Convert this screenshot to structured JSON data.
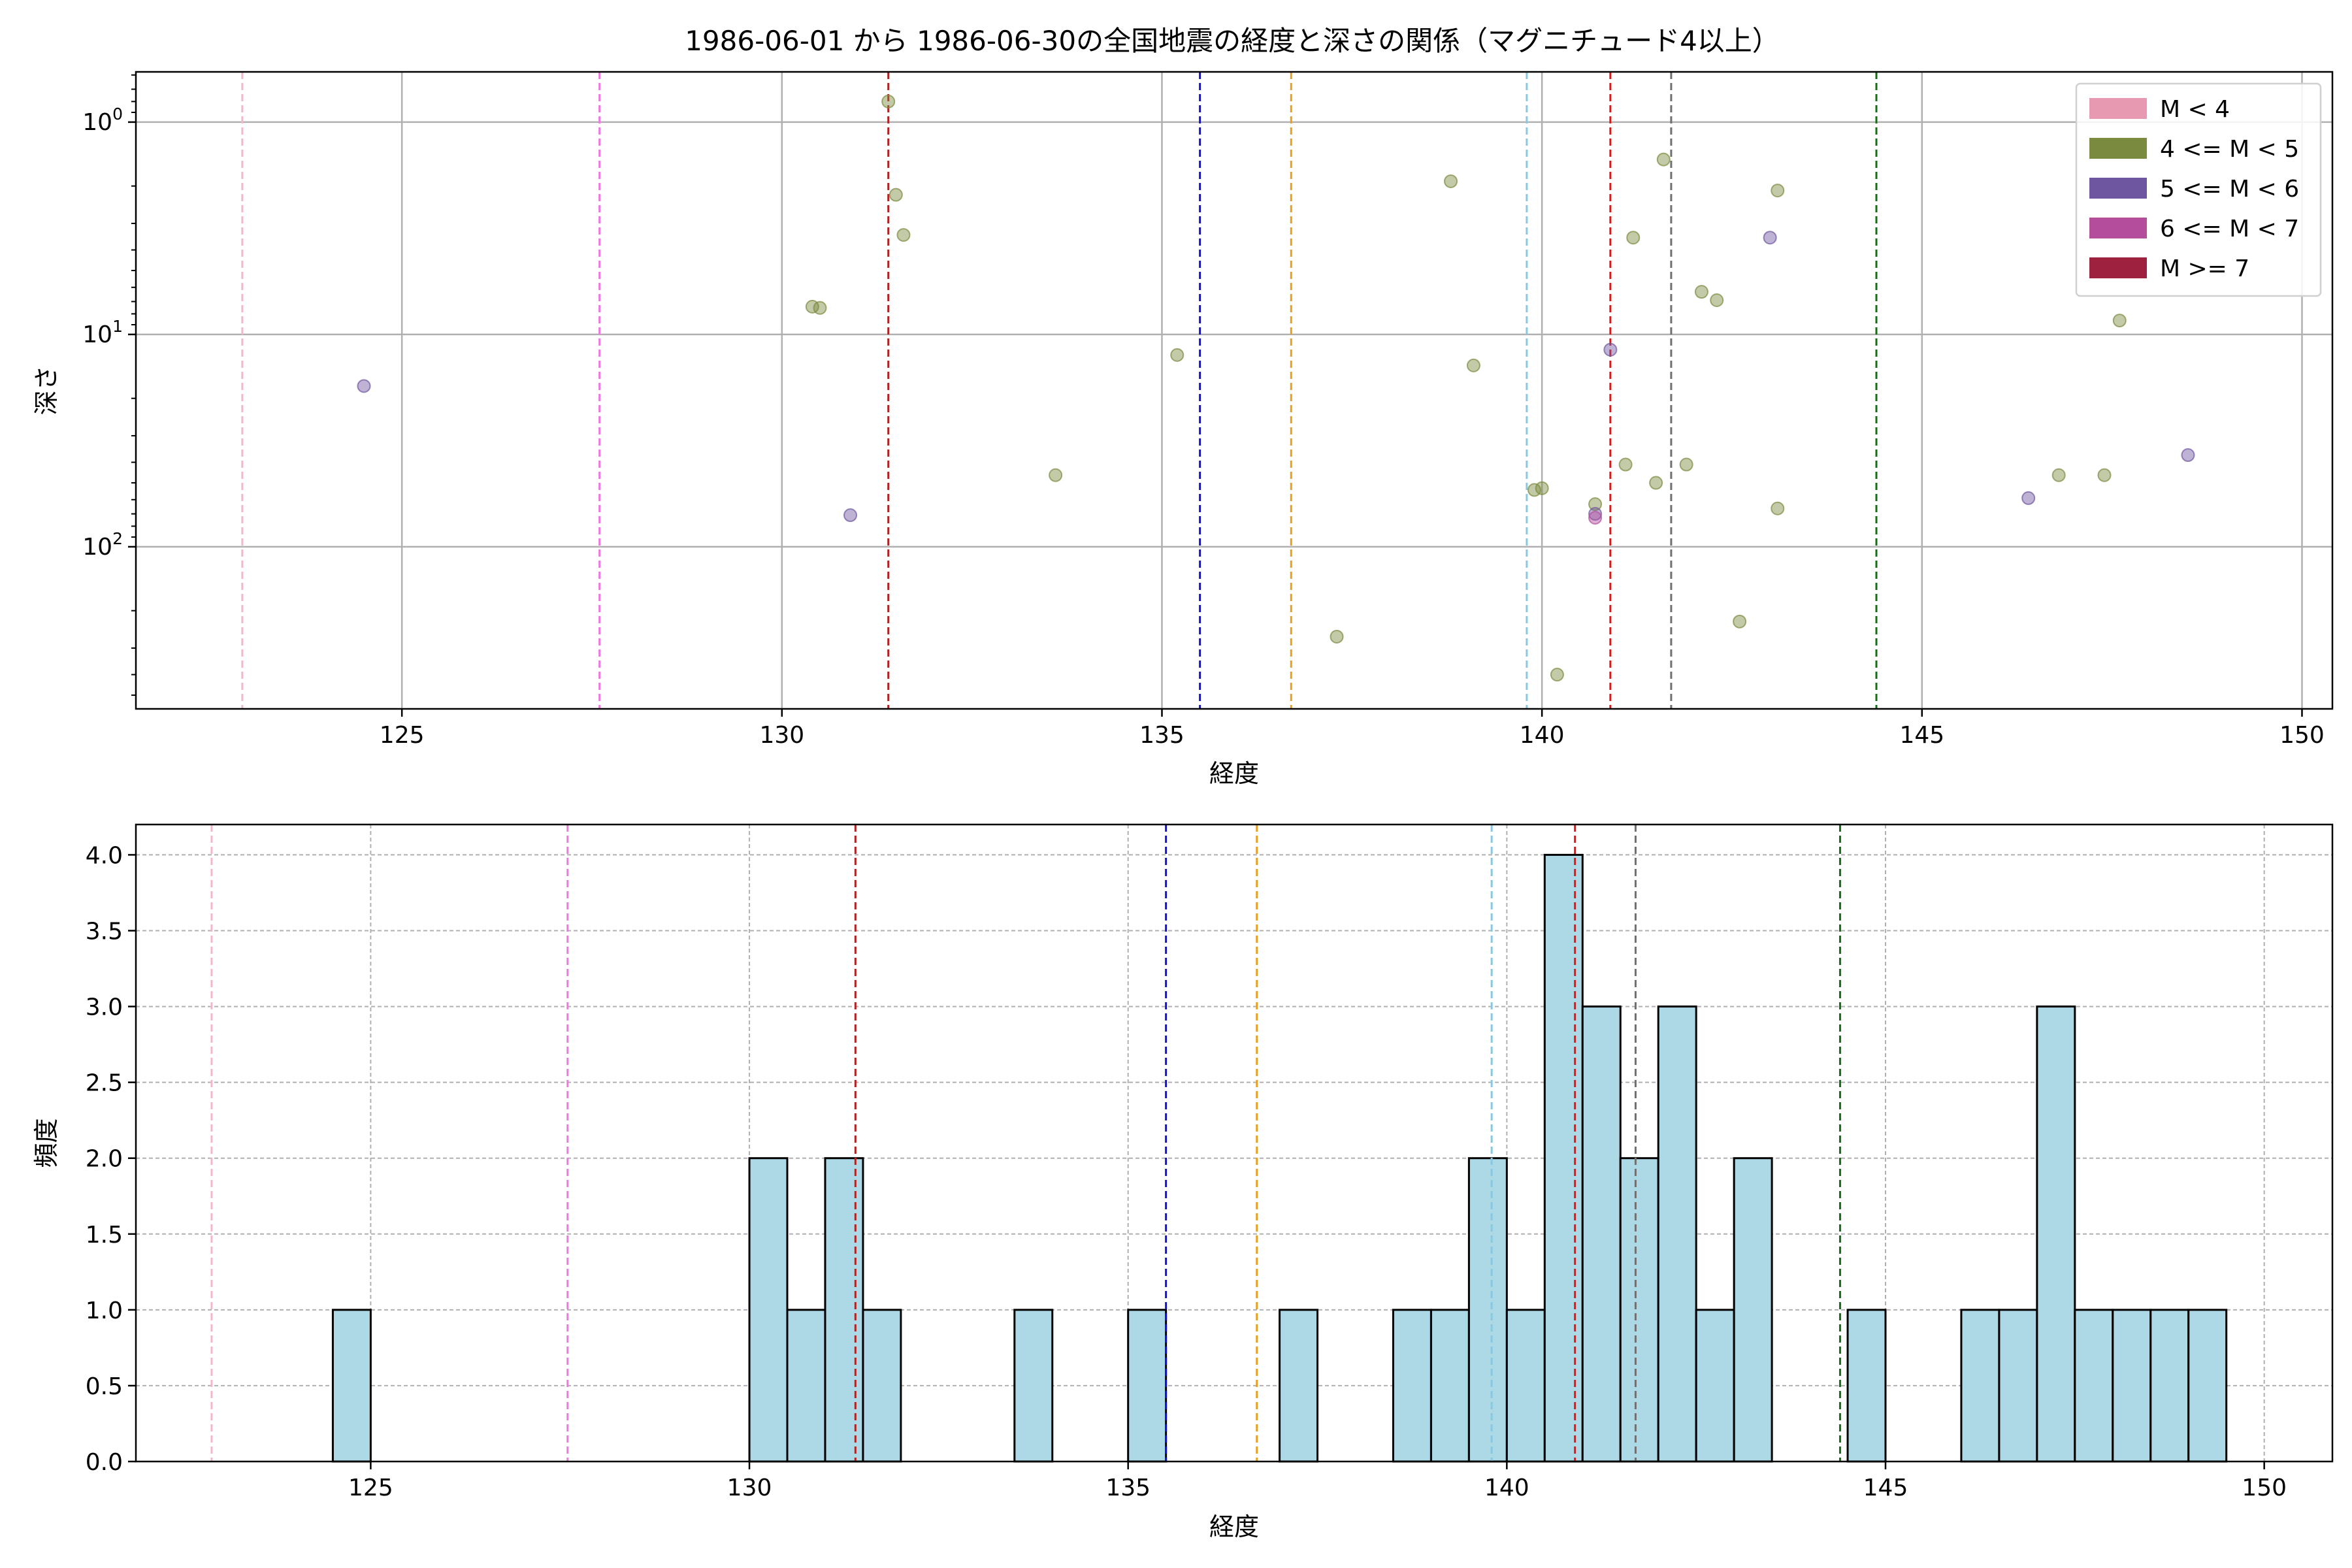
{
  "title": "1986-06-01 から 1986-06-30の全国地震の経度と深さの関係（マグニチュード4以上）",
  "chart_data": [
    {
      "type": "scatter",
      "xlabel": "経度",
      "ylabel": "深さ",
      "xlim": [
        121.5,
        150.4
      ],
      "ylim": [
        580,
        0.58
      ],
      "yscale": "log",
      "y_inverted": true,
      "grid": true,
      "x_ticks": [
        125,
        130,
        135,
        140,
        145,
        150
      ],
      "x_tick_labels": [
        "125",
        "130",
        "135",
        "140",
        "145",
        "150"
      ],
      "y_ticks": [
        1,
        10,
        100
      ],
      "y_tick_base": "10",
      "y_tick_exponents": [
        "0",
        "1",
        "2"
      ],
      "legend": {
        "placement": "top-right",
        "entries": [
          {
            "label": "M < 4",
            "color": "#e899b2"
          },
          {
            "label": "4 <= M < 5",
            "color": "#7a8a3e"
          },
          {
            "label": "5 <= M < 6",
            "color": "#6f56a0"
          },
          {
            "label": "6 <= M < 7",
            "color": "#b44d9b"
          },
          {
            "label": "M >= 7",
            "color": "#9e2240"
          }
        ]
      },
      "series": [
        {
          "name": "4 <= M < 5",
          "color": "#7a8a3e",
          "points": [
            [
              131.4,
              0.8
            ],
            [
              131.5,
              2.2
            ],
            [
              131.6,
              3.4
            ],
            [
              130.4,
              7.4
            ],
            [
              130.5,
              7.5
            ],
            [
              133.6,
              46
            ],
            [
              135.2,
              12.5
            ],
            [
              137.3,
              265
            ],
            [
              138.8,
              1.9
            ],
            [
              139.1,
              14
            ],
            [
              139.9,
              54
            ],
            [
              140.0,
              53
            ],
            [
              140.2,
              400
            ],
            [
              140.7,
              63
            ],
            [
              141.1,
              41
            ],
            [
              141.2,
              3.5
            ],
            [
              141.5,
              50
            ],
            [
              141.6,
              1.5
            ],
            [
              141.9,
              41
            ],
            [
              142.1,
              6.3
            ],
            [
              142.3,
              6.9
            ],
            [
              142.6,
              225
            ],
            [
              143.1,
              2.1
            ],
            [
              143.1,
              66
            ],
            [
              146.8,
              46
            ],
            [
              147.4,
              46
            ],
            [
              147.6,
              8.6
            ]
          ]
        },
        {
          "name": "5 <= M < 6",
          "color": "#6f56a0",
          "points": [
            [
              124.5,
              17.5
            ],
            [
              130.9,
              71
            ],
            [
              140.7,
              70
            ],
            [
              140.9,
              11.8
            ],
            [
              143.0,
              3.5
            ],
            [
              146.4,
              59
            ],
            [
              148.5,
              37
            ]
          ]
        },
        {
          "name": "6 <= M < 7",
          "color": "#b44d9b",
          "points": [
            [
              140.7,
              73
            ]
          ]
        }
      ],
      "reference_lines": [
        {
          "x": 122.9,
          "color": "#f4b6cc"
        },
        {
          "x": 127.6,
          "color": "#ee77e0"
        },
        {
          "x": 131.4,
          "color": "#b22222"
        },
        {
          "x": 135.5,
          "color": "#1010d8"
        },
        {
          "x": 136.7,
          "color": "#e8a020"
        },
        {
          "x": 139.8,
          "color": "#88c8e0"
        },
        {
          "x": 140.9,
          "color": "#ee1010"
        },
        {
          "x": 141.7,
          "color": "#707070"
        },
        {
          "x": 144.4,
          "color": "#157015"
        }
      ]
    },
    {
      "type": "bar",
      "subtype": "histogram",
      "xlabel": "経度",
      "ylabel": "頻度",
      "xlim": [
        121.9,
        150.9
      ],
      "ylim": [
        0,
        4.2
      ],
      "grid": true,
      "bar_color": "#add8e6",
      "bin_width": 0.5,
      "x_ticks": [
        125,
        130,
        135,
        140,
        145,
        150
      ],
      "x_tick_labels": [
        "125",
        "130",
        "135",
        "140",
        "145",
        "150"
      ],
      "y_ticks": [
        0,
        0.5,
        1.0,
        1.5,
        2.0,
        2.5,
        3.0,
        3.5,
        4.0
      ],
      "y_tick_labels": [
        "0.0",
        "0.5",
        "1.0",
        "1.5",
        "2.0",
        "2.5",
        "3.0",
        "3.5",
        "4.0"
      ],
      "bins": [
        [
          124.5,
          1
        ],
        [
          130.0,
          2
        ],
        [
          130.5,
          1
        ],
        [
          131.0,
          2
        ],
        [
          131.5,
          1
        ],
        [
          133.5,
          1
        ],
        [
          135.0,
          1
        ],
        [
          137.0,
          1
        ],
        [
          138.5,
          1
        ],
        [
          139.0,
          1
        ],
        [
          139.5,
          2
        ],
        [
          140.0,
          1
        ],
        [
          140.5,
          4
        ],
        [
          141.0,
          3
        ],
        [
          141.5,
          2
        ],
        [
          142.0,
          3
        ],
        [
          142.5,
          1
        ],
        [
          143.0,
          2
        ],
        [
          144.5,
          1
        ],
        [
          146.0,
          1
        ],
        [
          146.5,
          1
        ],
        [
          147.0,
          3
        ],
        [
          147.5,
          1
        ],
        [
          148.0,
          1
        ],
        [
          148.5,
          1
        ],
        [
          149.0,
          1
        ]
      ],
      "reference_lines": [
        {
          "x": 122.9,
          "color": "#f4b6cc"
        },
        {
          "x": 127.6,
          "color": "#ee77e0"
        },
        {
          "x": 131.4,
          "color": "#b22222"
        },
        {
          "x": 135.5,
          "color": "#1010d8"
        },
        {
          "x": 136.7,
          "color": "#e8a020"
        },
        {
          "x": 139.8,
          "color": "#88c8e0"
        },
        {
          "x": 140.9,
          "color": "#ee1010"
        },
        {
          "x": 141.7,
          "color": "#707070"
        },
        {
          "x": 144.4,
          "color": "#157015"
        }
      ]
    }
  ]
}
